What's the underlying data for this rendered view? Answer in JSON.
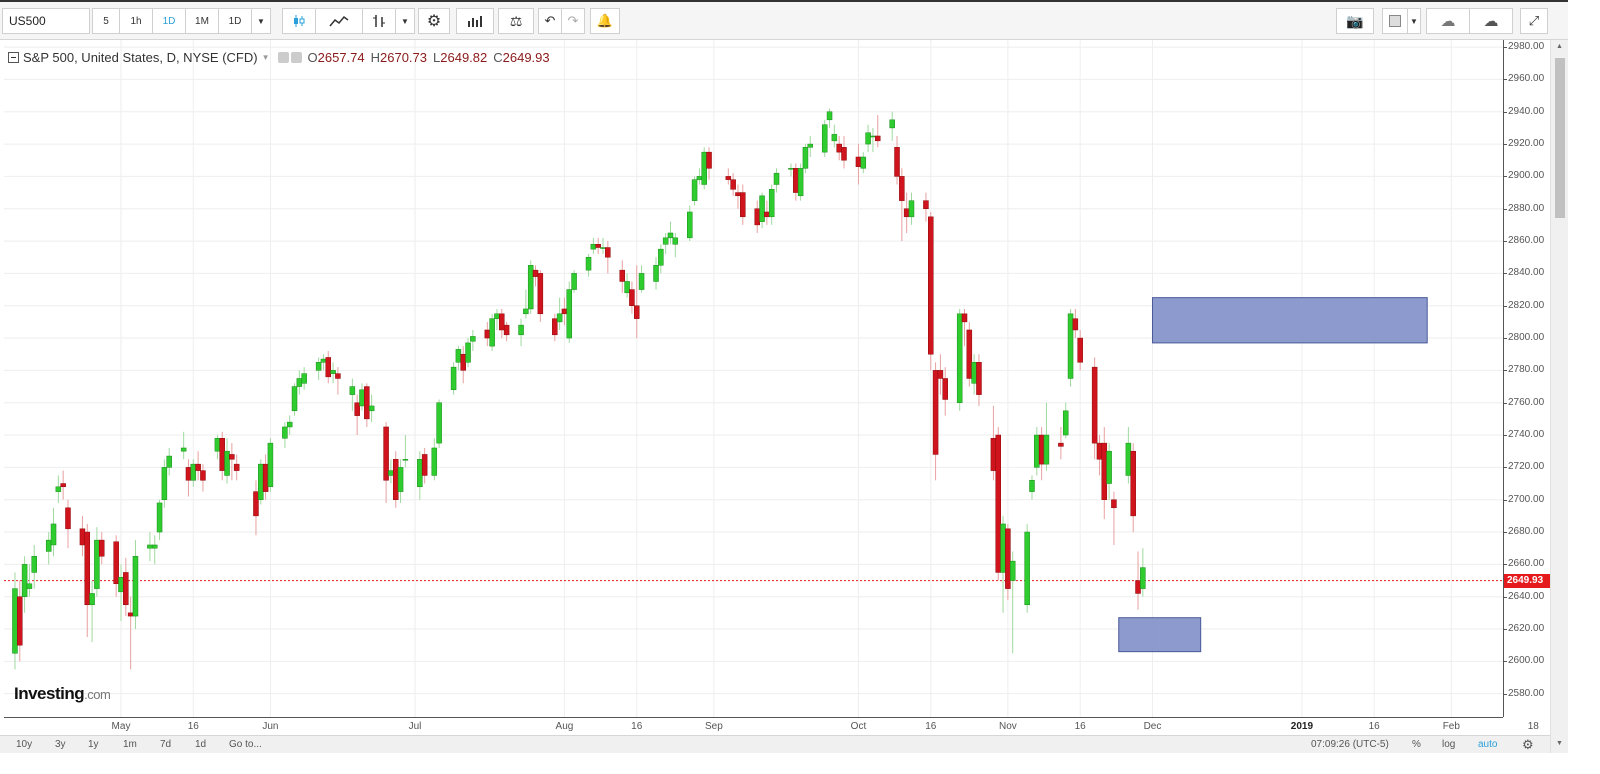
{
  "toolbar": {
    "symbol": "US500",
    "intervals": [
      "5",
      "1h",
      "1D",
      "1M",
      "1D"
    ],
    "active_interval_index": 2
  },
  "legend": {
    "title": "S&P 500, United States, D, NYSE (CFD)",
    "open_label": "O",
    "open": "2657.74",
    "high_label": "H",
    "high": "2670.73",
    "low_label": "L",
    "low": "2649.82",
    "close_label": "C",
    "close": "2649.93"
  },
  "logo": {
    "main": "Investing",
    "suffix": ".com"
  },
  "bottom_bar": {
    "ranges": [
      "10y",
      "3y",
      "1y",
      "1m",
      "7d",
      "1d"
    ],
    "goto": "Go to...",
    "clock": "07:09:26 (UTC-5)",
    "percent": "%",
    "log": "log",
    "auto": "auto"
  },
  "colors": {
    "up": "#2ecc2e",
    "down": "#d0141d",
    "rect": "#7f8fc8",
    "price_line": "#e41a1c"
  },
  "chart_data": {
    "type": "candlestick",
    "symbol": "US500",
    "ylim": [
      2570,
      2985
    ],
    "y_ticks": [
      2580,
      2600,
      2620,
      2640,
      2660,
      2680,
      2700,
      2720,
      2740,
      2760,
      2780,
      2800,
      2820,
      2840,
      2860,
      2880,
      2900,
      2920,
      2940,
      2960,
      2980
    ],
    "x_ticks": [
      "May",
      "16",
      "Jun",
      "Jul",
      "Aug",
      "16",
      "Sep",
      "Oct",
      "16",
      "Nov",
      "16",
      "Dec",
      "2019",
      "16",
      "Feb",
      "18"
    ],
    "x_tick_dates": [
      "2018-05-01",
      "2018-05-16",
      "2018-06-01",
      "2018-07-01",
      "2018-08-01",
      "2018-08-16",
      "2018-09-01",
      "2018-10-01",
      "2018-10-16",
      "2018-11-01",
      "2018-11-16",
      "2018-12-01",
      "2019-01-01",
      "2019-01-16",
      "2019-02-01",
      "2019-02-18"
    ],
    "bold_ticks": [
      "2019"
    ],
    "last_price": 2649.93,
    "last_price_label": "2649.93",
    "candles": [
      [
        "2018-04-09",
        2605,
        2655,
        2595,
        2645
      ],
      [
        "2018-04-10",
        2640,
        2650,
        2600,
        2610
      ],
      [
        "2018-04-11",
        2640,
        2665,
        2630,
        2660
      ],
      [
        "2018-04-12",
        2645,
        2660,
        2640,
        2648
      ],
      [
        "2018-04-13",
        2655,
        2672,
        2645,
        2665
      ],
      [
        "2018-04-16",
        2668,
        2680,
        2660,
        2675
      ],
      [
        "2018-04-17",
        2672,
        2695,
        2665,
        2685
      ],
      [
        "2018-04-18",
        2705,
        2715,
        2698,
        2708
      ],
      [
        "2018-04-19",
        2710,
        2718,
        2700,
        2708
      ],
      [
        "2018-04-20",
        2695,
        2700,
        2670,
        2682
      ],
      [
        "2018-04-23",
        2682,
        2690,
        2665,
        2672
      ],
      [
        "2018-04-24",
        2680,
        2685,
        2615,
        2635
      ],
      [
        "2018-04-25",
        2635,
        2650,
        2612,
        2642
      ],
      [
        "2018-04-26",
        2645,
        2683,
        2640,
        2675
      ],
      [
        "2018-04-27",
        2675,
        2680,
        2660,
        2665
      ],
      [
        "2018-04-30",
        2674,
        2678,
        2640,
        2648
      ],
      [
        "2018-05-01",
        2643,
        2660,
        2625,
        2652
      ],
      [
        "2018-05-02",
        2655,
        2664,
        2628,
        2635
      ],
      [
        "2018-05-03",
        2630,
        2640,
        2595,
        2628
      ],
      [
        "2018-05-04",
        2628,
        2675,
        2620,
        2665
      ],
      [
        "2018-05-07",
        2670,
        2680,
        2662,
        2672
      ],
      [
        "2018-05-08",
        2670,
        2678,
        2660,
        2672
      ],
      [
        "2018-05-09",
        2680,
        2700,
        2675,
        2698
      ],
      [
        "2018-05-10",
        2700,
        2725,
        2695,
        2720
      ],
      [
        "2018-05-11",
        2720,
        2732,
        2715,
        2727
      ],
      [
        "2018-05-14",
        2730,
        2742,
        2725,
        2732
      ],
      [
        "2018-05-15",
        2720,
        2725,
        2702,
        2712
      ],
      [
        "2018-05-16",
        2712,
        2725,
        2708,
        2722
      ],
      [
        "2018-05-17",
        2722,
        2730,
        2712,
        2718
      ],
      [
        "2018-05-18",
        2718,
        2722,
        2705,
        2712
      ],
      [
        "2018-05-21",
        2730,
        2740,
        2725,
        2738
      ],
      [
        "2018-05-22",
        2738,
        2742,
        2712,
        2718
      ],
      [
        "2018-05-23",
        2715,
        2738,
        2710,
        2730
      ],
      [
        "2018-05-24",
        2728,
        2735,
        2712,
        2725
      ],
      [
        "2018-05-25",
        2722,
        2728,
        2712,
        2718
      ],
      [
        "2018-05-29",
        2705,
        2712,
        2678,
        2690
      ],
      [
        "2018-05-30",
        2700,
        2725,
        2697,
        2722
      ],
      [
        "2018-05-31",
        2722,
        2728,
        2700,
        2705
      ],
      [
        "2018-06-01",
        2708,
        2738,
        2705,
        2735
      ],
      [
        "2018-06-04",
        2738,
        2748,
        2732,
        2745
      ],
      [
        "2018-06-05",
        2745,
        2752,
        2740,
        2748
      ],
      [
        "2018-06-06",
        2755,
        2772,
        2752,
        2770
      ],
      [
        "2018-06-07",
        2770,
        2780,
        2765,
        2775
      ],
      [
        "2018-06-08",
        2772,
        2782,
        2768,
        2778
      ],
      [
        "2018-06-11",
        2780,
        2788,
        2774,
        2785
      ],
      [
        "2018-06-12",
        2785,
        2790,
        2780,
        2787
      ],
      [
        "2018-06-13",
        2788,
        2792,
        2772,
        2776
      ],
      [
        "2018-06-14",
        2778,
        2785,
        2772,
        2780
      ],
      [
        "2018-06-15",
        2778,
        2782,
        2765,
        2775
      ],
      [
        "2018-06-18",
        2765,
        2775,
        2755,
        2770
      ],
      [
        "2018-06-19",
        2760,
        2765,
        2740,
        2752
      ],
      [
        "2018-06-20",
        2758,
        2772,
        2755,
        2768
      ],
      [
        "2018-06-21",
        2770,
        2772,
        2745,
        2750
      ],
      [
        "2018-06-22",
        2755,
        2765,
        2748,
        2758
      ],
      [
        "2018-06-25",
        2745,
        2748,
        2698,
        2712
      ],
      [
        "2018-06-26",
        2715,
        2725,
        2710,
        2718
      ],
      [
        "2018-06-27",
        2725,
        2730,
        2695,
        2700
      ],
      [
        "2018-06-28",
        2705,
        2725,
        2698,
        2720
      ],
      [
        "2018-06-29",
        2725,
        2740,
        2720,
        2725
      ],
      [
        "2018-07-02",
        2708,
        2730,
        2700,
        2725
      ],
      [
        "2018-07-03",
        2728,
        2732,
        2710,
        2715
      ],
      [
        "2018-07-05",
        2715,
        2738,
        2712,
        2732
      ],
      [
        "2018-07-06",
        2735,
        2762,
        2732,
        2760
      ],
      [
        "2018-07-09",
        2768,
        2785,
        2765,
        2782
      ],
      [
        "2018-07-10",
        2785,
        2795,
        2780,
        2793
      ],
      [
        "2018-07-11",
        2790,
        2795,
        2772,
        2780
      ],
      [
        "2018-07-12",
        2785,
        2800,
        2782,
        2797
      ],
      [
        "2018-07-13",
        2798,
        2805,
        2792,
        2801
      ],
      [
        "2018-07-16",
        2805,
        2810,
        2795,
        2800
      ],
      [
        "2018-07-17",
        2795,
        2815,
        2792,
        2812
      ],
      [
        "2018-07-18",
        2812,
        2818,
        2805,
        2815
      ],
      [
        "2018-07-19",
        2815,
        2818,
        2800,
        2805
      ],
      [
        "2018-07-20",
        2808,
        2810,
        2798,
        2802
      ],
      [
        "2018-07-23",
        2802,
        2812,
        2795,
        2808
      ],
      [
        "2018-07-24",
        2815,
        2830,
        2812,
        2818
      ],
      [
        "2018-07-25",
        2818,
        2848,
        2815,
        2845
      ],
      [
        "2018-07-26",
        2842,
        2845,
        2832,
        2838
      ],
      [
        "2018-07-27",
        2840,
        2842,
        2810,
        2815
      ],
      [
        "2018-07-30",
        2812,
        2815,
        2798,
        2802
      ],
      [
        "2018-07-31",
        2810,
        2825,
        2805,
        2815
      ],
      [
        "2018-08-01",
        2818,
        2825,
        2808,
        2815
      ],
      [
        "2018-08-02",
        2800,
        2835,
        2797,
        2830
      ],
      [
        "2018-08-03",
        2830,
        2842,
        2828,
        2840
      ],
      [
        "2018-08-06",
        2842,
        2852,
        2838,
        2850
      ],
      [
        "2018-08-07",
        2855,
        2862,
        2852,
        2858
      ],
      [
        "2018-08-08",
        2858,
        2862,
        2852,
        2856
      ],
      [
        "2018-08-09",
        2856,
        2862,
        2852,
        2856
      ],
      [
        "2018-08-10",
        2856,
        2860,
        2840,
        2850
      ],
      [
        "2018-08-13",
        2842,
        2848,
        2828,
        2835
      ],
      [
        "2018-08-14",
        2828,
        2840,
        2825,
        2835
      ],
      [
        "2018-08-15",
        2830,
        2835,
        2815,
        2820
      ],
      [
        "2018-08-16",
        2820,
        2845,
        2800,
        2812
      ],
      [
        "2018-08-17",
        2830,
        2845,
        2828,
        2840
      ],
      [
        "2018-08-20",
        2835,
        2850,
        2830,
        2845
      ],
      [
        "2018-08-21",
        2845,
        2858,
        2840,
        2855
      ],
      [
        "2018-08-22",
        2858,
        2865,
        2852,
        2862
      ],
      [
        "2018-08-23",
        2862,
        2872,
        2858,
        2865
      ],
      [
        "2018-08-24",
        2858,
        2865,
        2850,
        2862
      ],
      [
        "2018-08-27",
        2862,
        2882,
        2860,
        2878
      ],
      [
        "2018-08-28",
        2885,
        2900,
        2882,
        2898
      ],
      [
        "2018-08-29",
        2898,
        2905,
        2895,
        2900
      ],
      [
        "2018-08-30",
        2895,
        2918,
        2892,
        2915
      ],
      [
        "2018-08-31",
        2915,
        2918,
        2898,
        2905
      ],
      [
        "2018-09-04",
        2900,
        2905,
        2895,
        2898
      ],
      [
        "2018-09-05",
        2898,
        2902,
        2888,
        2892
      ],
      [
        "2018-09-06",
        2890,
        2895,
        2880,
        2888
      ],
      [
        "2018-09-07",
        2890,
        2895,
        2870,
        2875
      ],
      [
        "2018-09-10",
        2880,
        2885,
        2865,
        2870
      ],
      [
        "2018-09-11",
        2872,
        2890,
        2868,
        2888
      ],
      [
        "2018-09-12",
        2878,
        2885,
        2870,
        2875
      ],
      [
        "2018-09-13",
        2875,
        2895,
        2870,
        2892
      ],
      [
        "2018-09-14",
        2895,
        2905,
        2890,
        2902
      ],
      [
        "2018-09-17",
        2905,
        2908,
        2900,
        2905
      ],
      [
        "2018-09-18",
        2905,
        2908,
        2885,
        2890
      ],
      [
        "2018-09-19",
        2888,
        2908,
        2885,
        2905
      ],
      [
        "2018-09-20",
        2905,
        2920,
        2902,
        2918
      ],
      [
        "2018-09-21",
        2918,
        2925,
        2912,
        2920
      ],
      [
        "2018-09-24",
        2915,
        2935,
        2912,
        2932
      ],
      [
        "2018-09-25",
        2935,
        2942,
        2930,
        2940
      ],
      [
        "2018-09-26",
        2922,
        2932,
        2918,
        2926
      ],
      [
        "2018-09-27",
        2920,
        2925,
        2910,
        2915
      ],
      [
        "2018-09-28",
        2918,
        2925,
        2905,
        2910
      ],
      [
        "2018-10-01",
        2912,
        2920,
        2895,
        2906
      ],
      [
        "2018-10-02",
        2905,
        2915,
        2902,
        2912
      ],
      [
        "2018-10-03",
        2920,
        2932,
        2915,
        2927
      ],
      [
        "2018-10-04",
        2925,
        2930,
        2915,
        2925
      ],
      [
        "2018-10-05",
        2925,
        2938,
        2918,
        2922
      ],
      [
        "2018-10-08",
        2930,
        2940,
        2922,
        2935
      ],
      [
        "2018-10-09",
        2918,
        2925,
        2895,
        2900
      ],
      [
        "2018-10-10",
        2900,
        2905,
        2860,
        2885
      ],
      [
        "2018-10-11",
        2880,
        2890,
        2865,
        2875
      ],
      [
        "2018-10-12",
        2875,
        2890,
        2870,
        2885
      ],
      [
        "2018-10-15",
        2885,
        2890,
        2872,
        2880
      ],
      [
        "2018-10-16",
        2875,
        2878,
        2780,
        2790
      ],
      [
        "2018-10-17",
        2780,
        2785,
        2712,
        2728
      ],
      [
        "2018-10-18",
        2780,
        2790,
        2765,
        2775
      ],
      [
        "2018-10-19",
        2775,
        2782,
        2752,
        2762
      ],
      [
        "2018-10-22",
        2760,
        2818,
        2755,
        2815
      ],
      [
        "2018-10-23",
        2815,
        2818,
        2795,
        2810
      ],
      [
        "2018-10-24",
        2805,
        2810,
        2770,
        2775
      ],
      [
        "2018-10-25",
        2772,
        2790,
        2765,
        2785
      ],
      [
        "2018-10-26",
        2785,
        2790,
        2758,
        2765
      ],
      [
        "2018-10-29",
        2738,
        2758,
        2712,
        2718
      ],
      [
        "2018-10-30",
        2740,
        2745,
        2650,
        2655
      ],
      [
        "2018-10-31",
        2655,
        2690,
        2630,
        2685
      ],
      [
        "2018-11-01",
        2682,
        2685,
        2638,
        2645
      ],
      [
        "2018-11-02",
        2650,
        2668,
        2605,
        2662
      ],
      [
        "2018-11-05",
        2635,
        2685,
        2630,
        2680
      ],
      [
        "2018-11-06",
        2705,
        2715,
        2700,
        2712
      ],
      [
        "2018-11-07",
        2720,
        2745,
        2715,
        2740
      ],
      [
        "2018-11-08",
        2740,
        2745,
        2712,
        2722
      ],
      [
        "2018-11-09",
        2722,
        2760,
        2718,
        2740
      ],
      [
        "2018-11-12",
        2735,
        2745,
        2725,
        2733
      ],
      [
        "2018-11-13",
        2740,
        2760,
        2738,
        2755
      ],
      [
        "2018-11-14",
        2775,
        2818,
        2770,
        2815
      ],
      [
        "2018-11-15",
        2812,
        2818,
        2800,
        2805
      ],
      [
        "2018-11-16",
        2800,
        2805,
        2780,
        2785
      ],
      [
        "2018-11-19",
        2782,
        2788,
        2725,
        2735
      ],
      [
        "2018-11-20",
        2735,
        2740,
        2715,
        2725
      ],
      [
        "2018-11-21",
        2735,
        2745,
        2688,
        2700
      ],
      [
        "2018-11-22",
        2710,
        2735,
        2700,
        2730
      ],
      [
        "2018-11-23",
        2700,
        2705,
        2672,
        2695
      ],
      [
        "2018-11-26",
        2715,
        2745,
        2710,
        2735
      ],
      [
        "2018-11-27",
        2730,
        2735,
        2680,
        2690
      ],
      [
        "2018-11-28",
        2650,
        2668,
        2632,
        2642
      ],
      [
        "2018-11-29",
        2645,
        2670,
        2640,
        2658
      ]
    ],
    "drawings": [
      {
        "type": "rectangle",
        "from_date": "2018-12-01",
        "to_date": "2019-01-27",
        "y_top": 2825,
        "y_bottom": 2797
      },
      {
        "type": "rectangle",
        "from_date": "2018-11-24",
        "to_date": "2018-12-11",
        "y_top": 2627,
        "y_bottom": 2606
      }
    ]
  }
}
